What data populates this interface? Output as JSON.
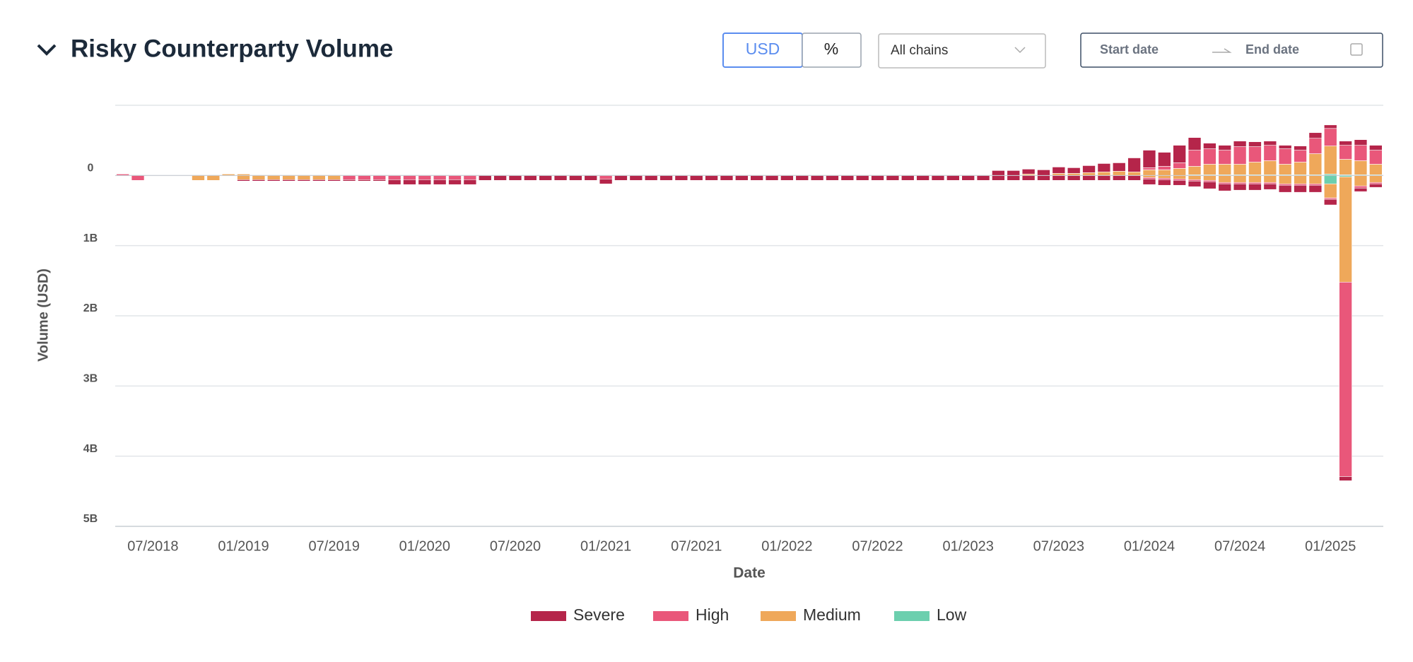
{
  "controls": {
    "currency": "USD",
    "percent": "%",
    "chains": "All chains",
    "start": "Start date",
    "end": "End date"
  },
  "chart_data": {
    "type": "diverging-stacked-bar",
    "title": "Risky Counterparty Volume",
    "x_label": "Date",
    "y_label": "Volume (USD)",
    "categories": [
      null,
      null,
      "07/2018",
      null,
      null,
      null,
      null,
      null,
      "01/2019",
      null,
      null,
      null,
      null,
      null,
      "07/2019",
      null,
      null,
      null,
      null,
      null,
      "01/2020",
      null,
      null,
      null,
      null,
      null,
      "07/2020",
      null,
      null,
      null,
      null,
      null,
      "01/2021",
      null,
      null,
      null,
      null,
      null,
      "07/2021",
      null,
      null,
      null,
      null,
      null,
      "01/2022",
      null,
      null,
      null,
      null,
      null,
      "07/2022",
      null,
      null,
      null,
      null,
      null,
      "01/2023",
      null,
      null,
      null,
      null,
      null,
      "07/2023",
      null,
      null,
      null,
      null,
      null,
      "01/2024",
      null,
      null,
      null,
      null,
      null,
      "07/2024",
      null,
      null,
      null,
      null,
      null,
      "01/2025",
      null,
      null,
      null
    ],
    "ylim": [
      -1,
      5
    ],
    "yticks": [
      0,
      {
        "value": 1,
        "label": "1B"
      },
      {
        "value": 2,
        "label": "2B"
      },
      {
        "value": 3,
        "label": "3B"
      },
      {
        "value": 4,
        "label": "4B"
      },
      {
        "value": 5,
        "label": "5B"
      }
    ],
    "grid": true,
    "legend": "bottom",
    "series": [
      {
        "name": "Severe",
        "color": "#b5254a",
        "values": [
          0,
          0,
          0,
          0,
          0,
          0,
          0,
          0,
          0.02,
          0.02,
          0.02,
          0.02,
          0.02,
          0.02,
          0.02,
          0.02,
          0.02,
          0.02,
          0.07,
          0.07,
          0.07,
          0.07,
          0.07,
          0.07,
          0.07,
          0.07,
          0.07,
          0.07,
          0.07,
          0.07,
          0.07,
          0.07,
          0.07,
          0.07,
          0.07,
          0.07,
          0.07,
          0.07,
          0.07,
          0.07,
          0.07,
          0.07,
          0.07,
          0.07,
          0.07,
          0.07,
          0.07,
          0.07,
          0.07,
          0.07,
          0.07,
          0.07,
          0.07,
          0.07,
          0.07,
          0.07,
          0.07,
          0.07,
          0.07,
          0.07,
          0.07,
          0.07,
          0.07,
          0.07,
          0.07,
          0.07,
          0.07,
          0.07,
          0.08,
          0.08,
          0.07,
          0.08,
          0.1,
          0.1,
          0.09,
          0.09,
          0.08,
          0.1,
          0.1,
          0.1,
          0.08,
          0.06,
          0.05,
          0.05
        ],
        "values_above": [
          0,
          0,
          0,
          0,
          0,
          0,
          0,
          0,
          0,
          0,
          0,
          0,
          0,
          0,
          0,
          0,
          0,
          0,
          0,
          0,
          0,
          0,
          0,
          0,
          0,
          0,
          0,
          0,
          0,
          0,
          0,
          0,
          0,
          0,
          0,
          0,
          0,
          0,
          0,
          0,
          0,
          0,
          0,
          0,
          0,
          0,
          0,
          0,
          0,
          0,
          0,
          0,
          0,
          0,
          0,
          0,
          0,
          0,
          -0.07,
          -0.07,
          -0.07,
          -0.08,
          -0.09,
          -0.08,
          -0.1,
          -0.12,
          -0.12,
          -0.2,
          -0.25,
          -0.2,
          -0.25,
          -0.18,
          -0.08,
          -0.07,
          -0.08,
          -0.07,
          -0.06,
          -0.05,
          -0.06,
          -0.08,
          -0.05,
          -0.06,
          -0.08,
          -0.07
        ]
      },
      {
        "name": "High",
        "color": "#e9577a",
        "values": [
          0,
          0.07,
          0,
          0,
          0,
          0,
          0,
          0,
          0,
          0,
          0,
          0,
          0,
          0,
          0,
          0.06,
          0.06,
          0.06,
          0.06,
          0.06,
          0.06,
          0.06,
          0.06,
          0.06,
          0,
          0,
          0,
          0,
          0,
          0,
          0,
          0,
          0.05,
          0,
          0,
          0,
          0,
          0,
          0,
          0,
          0,
          0,
          0,
          0,
          0,
          0,
          0,
          0,
          0,
          0,
          0,
          0,
          0,
          0,
          0,
          0,
          0,
          0,
          0,
          0,
          0,
          0,
          0,
          0,
          0,
          0,
          0,
          0,
          0.02,
          0.02,
          0.02,
          0.02,
          0.02,
          0.02,
          0.02,
          0.02,
          0.02,
          0.02,
          0.02,
          0.02,
          0.02,
          2.77,
          0.03,
          0.02
        ],
        "values_above": [
          -0.02,
          0,
          0,
          0,
          0,
          0,
          0,
          0,
          0,
          0,
          0,
          0,
          0,
          0,
          0,
          0,
          0,
          0,
          0,
          0,
          0,
          0,
          0,
          0,
          0,
          0,
          0,
          0,
          0,
          0,
          0,
          0,
          0,
          0,
          0,
          0,
          0,
          0,
          0,
          0,
          0,
          0,
          0,
          0,
          0,
          0,
          0,
          0,
          0,
          0,
          0,
          0,
          0,
          0,
          0,
          0,
          0,
          0,
          0,
          0,
          0,
          0,
          0,
          0,
          0,
          0,
          0,
          0,
          -0.03,
          -0.05,
          -0.08,
          -0.23,
          -0.22,
          -0.2,
          -0.25,
          -0.22,
          -0.22,
          -0.22,
          -0.17,
          -0.22,
          -0.25,
          -0.2,
          -0.22,
          -0.2
        ]
      },
      {
        "name": "Medium",
        "color": "#efa85a",
        "values": [
          0,
          0,
          0,
          0,
          0,
          0.07,
          0.07,
          0,
          0.06,
          0.06,
          0.06,
          0.06,
          0.06,
          0.06,
          0.06,
          0,
          0,
          0,
          0,
          0,
          0,
          0,
          0,
          0,
          0,
          0,
          0,
          0,
          0,
          0,
          0,
          0,
          0,
          0,
          0,
          0,
          0,
          0,
          0,
          0,
          0,
          0,
          0,
          0,
          0,
          0,
          0,
          0,
          0,
          0,
          0,
          0,
          0,
          0,
          0,
          0,
          0,
          0,
          0,
          0,
          0,
          0,
          0,
          0,
          0,
          0,
          0,
          0,
          0.03,
          0.04,
          0.05,
          0.06,
          0.07,
          0.1,
          0.1,
          0.1,
          0.1,
          0.12,
          0.12,
          0.12,
          0.2,
          1.5,
          0.15,
          0.1
        ],
        "values_above": [
          0,
          0,
          0,
          0,
          0,
          0,
          0,
          -0.02,
          -0.02,
          0,
          0,
          0,
          0,
          0,
          0,
          0,
          0,
          0,
          0,
          0,
          0,
          0,
          0,
          0,
          0,
          0,
          0,
          0,
          0,
          0,
          0,
          0,
          0,
          0,
          0,
          0,
          0,
          0,
          0,
          0,
          0,
          0,
          0,
          0,
          0,
          0,
          0,
          0,
          0,
          0,
          0,
          0,
          0,
          0,
          0,
          0,
          0,
          0,
          0,
          0,
          -0.02,
          0,
          -0.03,
          -0.03,
          -0.04,
          -0.05,
          -0.06,
          -0.05,
          -0.08,
          -0.08,
          -0.1,
          -0.12,
          -0.15,
          -0.15,
          -0.15,
          -0.18,
          -0.2,
          -0.15,
          -0.18,
          -0.3,
          -0.4,
          -0.22,
          -0.2,
          -0.15
        ]
      },
      {
        "name": "Low",
        "color": "#6ccfae",
        "values": [
          0,
          0,
          0,
          0,
          0,
          0,
          0,
          0,
          0,
          0,
          0,
          0,
          0,
          0,
          0,
          0,
          0,
          0,
          0,
          0,
          0,
          0,
          0,
          0,
          0,
          0,
          0,
          0,
          0,
          0,
          0,
          0,
          0,
          0,
          0,
          0,
          0,
          0,
          0,
          0,
          0,
          0,
          0,
          0,
          0,
          0,
          0,
          0,
          0,
          0,
          0,
          0,
          0,
          0,
          0,
          0,
          0,
          0,
          0,
          0,
          0,
          0,
          0,
          0,
          0,
          0,
          0,
          0,
          0,
          0,
          0,
          0,
          0,
          0,
          0,
          0,
          0,
          0,
          0,
          0,
          0.12,
          0.02,
          0,
          0
        ],
        "values_above": [
          0,
          0,
          0,
          0,
          0,
          0,
          0,
          0,
          0,
          0,
          0,
          0,
          0,
          0,
          0,
          0,
          0,
          0,
          0,
          0,
          0,
          0,
          0,
          0,
          0,
          0,
          0,
          0,
          0,
          0,
          0,
          0,
          0,
          0,
          0,
          0,
          0,
          0,
          0,
          0,
          0,
          0,
          0,
          0,
          0,
          0,
          0,
          0,
          0,
          0,
          0,
          0,
          0,
          0,
          0,
          0,
          0,
          0,
          0,
          0,
          0,
          0,
          0,
          0,
          0,
          0,
          0,
          0,
          0,
          0,
          0,
          -0.01,
          -0.01,
          -0.01,
          -0.01,
          -0.01,
          -0.01,
          -0.01,
          -0.01,
          -0.01,
          -0.02,
          -0.01,
          -0.01,
          -0.01
        ]
      }
    ]
  }
}
